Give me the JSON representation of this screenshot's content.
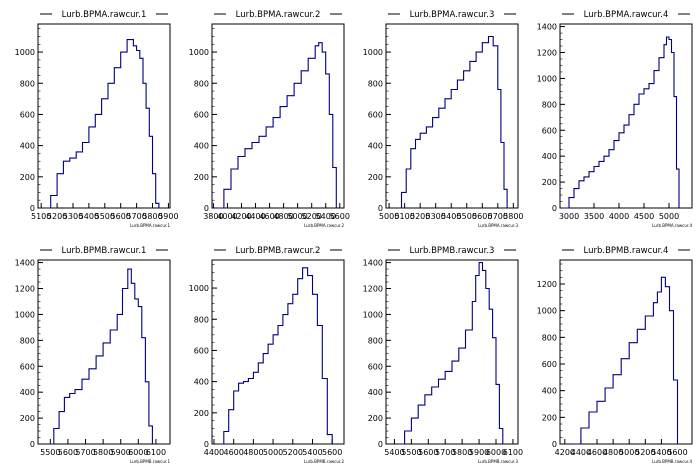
{
  "colors": {
    "line": "#000080",
    "axis": "#000000",
    "background": "#ffffff"
  },
  "chart_data": [
    {
      "type": "histogram",
      "title": "Lurb.BPMA.rawcur.1",
      "xlabel": "Lurb.BPMA.rawcur.1",
      "xlim": [
        5080,
        5910
      ],
      "ylim": [
        0,
        1180
      ],
      "xticks": [
        5100,
        5200,
        5300,
        5400,
        5500,
        5600,
        5700,
        5800,
        5900
      ],
      "yticks": [
        200,
        400,
        600,
        800,
        1000
      ],
      "x": [
        5120,
        5160,
        5200,
        5240,
        5280,
        5320,
        5360,
        5400,
        5440,
        5480,
        5520,
        5560,
        5600,
        5640,
        5680,
        5700,
        5720,
        5740,
        5760,
        5780,
        5800,
        5820,
        5840
      ],
      "values": [
        0,
        80,
        220,
        300,
        320,
        360,
        420,
        520,
        600,
        700,
        800,
        900,
        1000,
        1080,
        1040,
        1010,
        960,
        800,
        640,
        460,
        220,
        30,
        0
      ]
    },
    {
      "type": "histogram",
      "title": "Lurb.BPMA.rawcur.2",
      "xlabel": "Lurb.BPMA.rawcur.2",
      "xlim": [
        3780,
        5660
      ],
      "ylim": [
        0,
        1180
      ],
      "xticks": [
        3800,
        4000,
        4200,
        4400,
        4600,
        4800,
        5000,
        5200,
        5400,
        5600
      ],
      "yticks": [
        200,
        400,
        600,
        800,
        1000
      ],
      "x": [
        3850,
        3950,
        4050,
        4150,
        4250,
        4350,
        4450,
        4550,
        4650,
        4750,
        4850,
        4950,
        5050,
        5150,
        5250,
        5300,
        5350,
        5400,
        5450,
        5500,
        5550
      ],
      "values": [
        0,
        120,
        250,
        330,
        380,
        420,
        460,
        520,
        580,
        650,
        720,
        800,
        880,
        960,
        1040,
        1060,
        1000,
        860,
        600,
        260,
        0
      ]
    },
    {
      "type": "histogram",
      "title": "Lurb.BPMA.rawcur.3",
      "xlabel": "Lurb.BPMA.rawcur.3",
      "xlim": [
        4980,
        5830
      ],
      "ylim": [
        0,
        1180
      ],
      "xticks": [
        5000,
        5100,
        5200,
        5300,
        5400,
        5500,
        5600,
        5700,
        5800
      ],
      "yticks": [
        200,
        400,
        600,
        800,
        1000
      ],
      "x": [
        5050,
        5080,
        5110,
        5140,
        5170,
        5200,
        5240,
        5280,
        5320,
        5360,
        5400,
        5440,
        5480,
        5520,
        5560,
        5600,
        5640,
        5670,
        5700,
        5720,
        5740,
        5760
      ],
      "values": [
        0,
        100,
        250,
        380,
        440,
        480,
        520,
        580,
        640,
        700,
        760,
        820,
        880,
        940,
        1000,
        1060,
        1100,
        1040,
        760,
        420,
        120,
        0
      ]
    },
    {
      "type": "histogram",
      "title": "Lurb.BPMA.rawcur.4",
      "xlabel": "Lurb.BPMA.rawcur.4",
      "xlim": [
        2820,
        5460
      ],
      "ylim": [
        0,
        1420
      ],
      "xticks": [
        3000,
        3500,
        4000,
        4500,
        5000
      ],
      "yticks": [
        200,
        400,
        600,
        800,
        1000,
        1200,
        1400
      ],
      "x": [
        2900,
        3000,
        3100,
        3200,
        3300,
        3400,
        3500,
        3600,
        3700,
        3800,
        3900,
        4000,
        4100,
        4200,
        4300,
        4400,
        4500,
        4600,
        4700,
        4800,
        4900,
        4950,
        5000,
        5050,
        5100,
        5150,
        5200
      ],
      "values": [
        0,
        80,
        150,
        210,
        240,
        280,
        320,
        360,
        400,
        450,
        520,
        580,
        640,
        720,
        800,
        880,
        920,
        960,
        1060,
        1160,
        1260,
        1320,
        1300,
        1200,
        860,
        300,
        0
      ]
    },
    {
      "type": "histogram",
      "title": "Lurb.BPMB.rawcur.1",
      "xlabel": "Lurb.BPMB.rawcur.1",
      "xlim": [
        5430,
        6180
      ],
      "ylim": [
        0,
        1420
      ],
      "xticks": [
        5500,
        5600,
        5700,
        5800,
        5900,
        6000,
        6100
      ],
      "yticks": [
        200,
        400,
        600,
        800,
        1000,
        1200,
        1400
      ],
      "x": [
        5490,
        5520,
        5550,
        5580,
        5610,
        5640,
        5680,
        5720,
        5760,
        5800,
        5840,
        5880,
        5910,
        5940,
        5960,
        5980,
        6000,
        6020,
        6040,
        6060,
        6080
      ],
      "values": [
        0,
        120,
        250,
        360,
        390,
        420,
        500,
        580,
        680,
        780,
        880,
        1000,
        1200,
        1350,
        1240,
        1120,
        1060,
        820,
        480,
        140,
        0
      ]
    },
    {
      "type": "histogram",
      "title": "Lurb.BPMB.rawcur.2",
      "xlabel": "Lurb.BPMB.rawcur.2",
      "xlim": [
        4380,
        5720
      ],
      "ylim": [
        0,
        1180
      ],
      "xticks": [
        4400,
        4600,
        4800,
        5000,
        5200,
        5400,
        5600
      ],
      "yticks": [
        200,
        400,
        600,
        800,
        1000
      ],
      "x": [
        4450,
        4500,
        4550,
        4600,
        4650,
        4700,
        4750,
        4800,
        4850,
        4900,
        4950,
        5000,
        5050,
        5100,
        5150,
        5200,
        5250,
        5300,
        5350,
        5400,
        5450,
        5500,
        5550,
        5600
      ],
      "values": [
        0,
        80,
        220,
        340,
        390,
        400,
        420,
        460,
        520,
        580,
        640,
        700,
        760,
        830,
        900,
        960,
        1060,
        1130,
        1080,
        960,
        760,
        420,
        60,
        0
      ]
    },
    {
      "type": "histogram",
      "title": "Lurb.BPMB.rawcur.3",
      "xlabel": "Lurb.BPMB.rawcur.3",
      "xlim": [
        5350,
        6130
      ],
      "ylim": [
        0,
        1420
      ],
      "xticks": [
        5400,
        5500,
        5600,
        5700,
        5800,
        5900,
        6000,
        6100
      ],
      "yticks": [
        200,
        400,
        600,
        800,
        1000,
        1200,
        1400
      ],
      "x": [
        5420,
        5460,
        5500,
        5540,
        5580,
        5620,
        5660,
        5700,
        5740,
        5780,
        5820,
        5860,
        5880,
        5900,
        5920,
        5940,
        5960,
        5980,
        6000,
        6020,
        6040
      ],
      "values": [
        0,
        100,
        200,
        300,
        380,
        440,
        500,
        560,
        640,
        740,
        880,
        1100,
        1300,
        1400,
        1340,
        1200,
        1040,
        820,
        460,
        120,
        0
      ]
    },
    {
      "type": "histogram",
      "title": "Lurb.BPMB.rawcur.4",
      "xlabel": "Lurb.BPMB.rawcur.4",
      "xlim": [
        4140,
        5780
      ],
      "ylim": [
        0,
        1380
      ],
      "xticks": [
        4200,
        4400,
        4600,
        4800,
        5000,
        5200,
        5400,
        5600
      ],
      "yticks": [
        200,
        400,
        600,
        800,
        1000,
        1200
      ],
      "x": [
        4300,
        4400,
        4500,
        4600,
        4700,
        4800,
        4900,
        5000,
        5100,
        5200,
        5300,
        5350,
        5400,
        5450,
        5500,
        5550,
        5600
      ],
      "values": [
        0,
        120,
        240,
        320,
        420,
        520,
        640,
        760,
        860,
        960,
        1060,
        1140,
        1250,
        1180,
        1000,
        480,
        0
      ]
    }
  ]
}
